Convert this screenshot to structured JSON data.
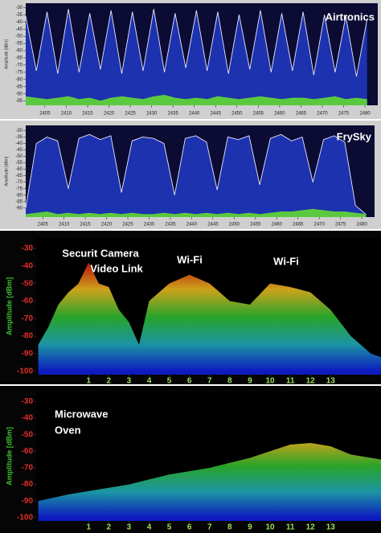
{
  "chart_data": [
    {
      "type": "area",
      "title": "Airtronics",
      "y_label": "Amplitude [dBm]",
      "x": [
        2400.5,
        2403,
        2405.5,
        2408,
        2410.5,
        2413,
        2415.5,
        2418,
        2420.5,
        2423,
        2425.5,
        2428,
        2430.5,
        2433,
        2435.5,
        2438,
        2440.5,
        2443,
        2445.5,
        2448,
        2450.5,
        2453,
        2455.5,
        2458,
        2460.5,
        2463,
        2465.5,
        2468,
        2470.5,
        2473,
        2475.5,
        2478,
        2480.5
      ],
      "series": [
        {
          "color": "#1f35b5",
          "line_color": "#e8e8ff",
          "values": [
            -36,
            -74,
            -33,
            -76,
            -31,
            -75,
            -34,
            -73,
            -32,
            -76,
            -33,
            -74,
            -31,
            -75,
            -34,
            -72,
            -32,
            -74,
            -33,
            -76,
            -35,
            -73,
            -32,
            -75,
            -34,
            -74,
            -33,
            -77,
            -35,
            -75,
            -36,
            -78,
            -38
          ]
        },
        {
          "color": "#5fd23a",
          "line_color": "#5fd23a",
          "values": [
            -92,
            -93,
            -94,
            -93,
            -92,
            -94,
            -93,
            -95,
            -93,
            -92,
            -93,
            -94,
            -92,
            -91,
            -93,
            -94,
            -93,
            -94,
            -92,
            -93,
            -94,
            -93,
            -92,
            -93,
            -94,
            -93,
            -93,
            -94,
            -93,
            -92,
            -94,
            -93,
            -94
          ]
        }
      ],
      "xlim": [
        2400.5,
        2483
      ],
      "xticks": [
        2405,
        2410,
        2415,
        2420,
        2425,
        2430,
        2435,
        2440,
        2445,
        2450,
        2455,
        2460,
        2465,
        2470,
        2475,
        2480
      ],
      "ylim": [
        -98,
        -27
      ],
      "yticks": [
        -30,
        -35,
        -40,
        -45,
        -50,
        -55,
        -60,
        -65,
        -70,
        -75,
        -80,
        -85,
        -90,
        -95
      ]
    },
    {
      "type": "area",
      "title": "FrySky",
      "y_label": "Amplitude [dBm]",
      "x": [
        2401,
        2403.5,
        2406,
        2408.5,
        2411,
        2413.5,
        2416,
        2418.5,
        2421,
        2423.5,
        2426,
        2428.5,
        2431,
        2433.5,
        2436,
        2438.5,
        2441,
        2443.5,
        2446,
        2448.5,
        2451,
        2453.5,
        2456,
        2458.5,
        2461,
        2463.5,
        2466,
        2468.5,
        2471,
        2473.5,
        2476,
        2478.5,
        2481
      ],
      "series": [
        {
          "color": "#1f35b5",
          "line_color": "#e8e8ff",
          "values": [
            -90,
            -40,
            -35,
            -38,
            -75,
            -36,
            -33,
            -37,
            -34,
            -78,
            -38,
            -35,
            -36,
            -40,
            -80,
            -36,
            -34,
            -39,
            -76,
            -35,
            -37,
            -34,
            -72,
            -36,
            -33,
            -38,
            -35,
            -70,
            -37,
            -34,
            -39,
            -88,
            -95
          ]
        },
        {
          "color": "#5fd23a",
          "line_color": "#5fd23a",
          "values": [
            -95,
            -94,
            -93,
            -95,
            -94,
            -95,
            -94,
            -95,
            -94,
            -95,
            -94,
            -95,
            -95,
            -94,
            -95,
            -94,
            -95,
            -94,
            -95,
            -94,
            -95,
            -94,
            -95,
            -94,
            -93,
            -93,
            -92,
            -91,
            -92,
            -93,
            -93,
            -94,
            -95
          ]
        }
      ],
      "xlim": [
        2401,
        2483
      ],
      "xticks": [
        2405,
        2410,
        2415,
        2420,
        2425,
        2430,
        2435,
        2440,
        2445,
        2450,
        2455,
        2460,
        2465,
        2470,
        2475,
        2480
      ],
      "ylim": [
        -97,
        -26
      ],
      "yticks": [
        -30,
        -35,
        -40,
        -45,
        -50,
        -55,
        -60,
        -65,
        -70,
        -75,
        -80,
        -85,
        -90
      ]
    },
    {
      "type": "density",
      "y_label": "Amplitude [dBm]",
      "annotations": [
        "Securit Camera",
        "Video Link",
        "Wi-Fi",
        "Wi-Fi"
      ],
      "x": [
        -1.5,
        -1,
        -0.5,
        0,
        0.5,
        1,
        1.5,
        2,
        2.5,
        3,
        3.5,
        4,
        5,
        6,
        7,
        8,
        9,
        10,
        11,
        12,
        13,
        14,
        15,
        15.5
      ],
      "values": [
        -85,
        -75,
        -62,
        -55,
        -50,
        -38,
        -50,
        -52,
        -65,
        -72,
        -85,
        -60,
        -50,
        -45,
        -50,
        -60,
        -62,
        -50,
        -52,
        -55,
        -65,
        -80,
        -90,
        -92
      ],
      "colorscale": [
        "#e01010",
        "#f0c020",
        "#30c030",
        "#20b0c0",
        "#1020e0"
      ],
      "xlim": [
        -1.6,
        15.5
      ],
      "xticks": [
        1,
        2,
        3,
        4,
        5,
        6,
        7,
        8,
        9,
        10,
        11,
        12,
        13
      ],
      "ylim": [
        -102,
        -24
      ],
      "yticks": [
        -30,
        -40,
        -50,
        -60,
        -70,
        -80,
        -90,
        -100
      ]
    },
    {
      "type": "density",
      "y_label": "Amplitude [dBm]",
      "annotations": [
        "Microwave",
        "Oven"
      ],
      "x": [
        -1.5,
        0,
        1,
        2,
        3,
        4,
        5,
        6,
        7,
        8,
        9,
        10,
        11,
        12,
        13,
        14,
        15.5
      ],
      "values": [
        -90,
        -86,
        -84,
        -82,
        -80,
        -77,
        -74,
        -72,
        -70,
        -67,
        -64,
        -60,
        -56,
        -55,
        -57,
        -62,
        -65
      ],
      "colorscale": [
        "#e01010",
        "#f0c020",
        "#30c030",
        "#20b0c0",
        "#1020e0"
      ],
      "xlim": [
        -1.6,
        15.5
      ],
      "xticks": [
        1,
        2,
        3,
        4,
        5,
        6,
        7,
        8,
        9,
        10,
        11,
        12,
        13
      ],
      "ylim": [
        -102,
        -24
      ],
      "yticks": [
        -30,
        -40,
        -50,
        -60,
        -70,
        -80,
        -90,
        -100
      ]
    }
  ]
}
